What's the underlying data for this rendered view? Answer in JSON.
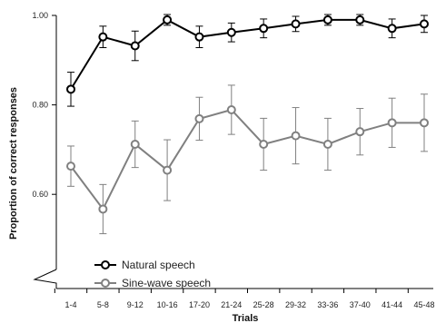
{
  "chart_data": {
    "type": "line",
    "xlabel": "Trials",
    "ylabel": "Proportion of correct responses",
    "categories": [
      "1-4",
      "5-8",
      "9-12",
      "10-16",
      "17-20",
      "21-24",
      "25-28",
      "29-32",
      "33-36",
      "37-40",
      "41-44",
      "45-48"
    ],
    "yticks": [
      "0.60",
      "0.80",
      "1.00"
    ],
    "ylim": [
      0.4,
      1.0
    ],
    "axis_break": true,
    "legend_position": "bottom-left",
    "series": [
      {
        "name": "Natural speech",
        "marker": "open-circle",
        "color": "#000000",
        "values": [
          0.835,
          0.952,
          0.932,
          0.99,
          0.952,
          0.962,
          0.971,
          0.981,
          0.99,
          0.99,
          0.971,
          0.981
        ],
        "error": [
          0.038,
          0.024,
          0.033,
          0.012,
          0.024,
          0.021,
          0.021,
          0.017,
          0.012,
          0.012,
          0.021,
          0.019
        ]
      },
      {
        "name": "Sine-wave speech",
        "marker": "open-circle",
        "color": "#808080",
        "values": [
          0.663,
          0.567,
          0.712,
          0.654,
          0.769,
          0.789,
          0.712,
          0.731,
          0.712,
          0.74,
          0.76,
          0.76
        ],
        "error": [
          0.045,
          0.055,
          0.052,
          0.068,
          0.048,
          0.055,
          0.058,
          0.063,
          0.058,
          0.052,
          0.055,
          0.064
        ]
      }
    ]
  }
}
